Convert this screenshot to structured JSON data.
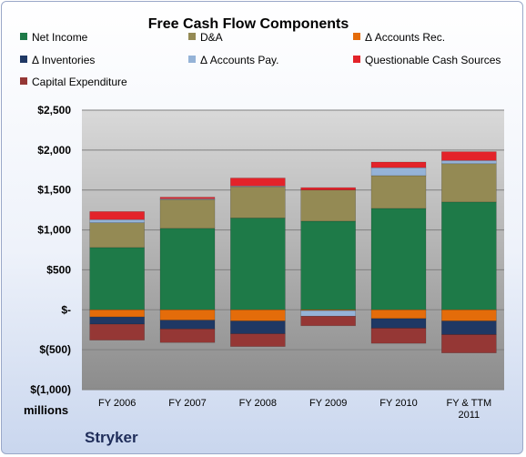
{
  "chart_data": {
    "type": "bar",
    "stacked": true,
    "title": "Free Cash Flow Components",
    "ylabel": "millions",
    "company": "Stryker",
    "categories": [
      "FY 2006",
      "FY 2007",
      "FY 2008",
      "FY 2009",
      "FY 2010",
      "FY & TTM 2011"
    ],
    "yticks": [
      "$2,500",
      "$2,000",
      "$1,500",
      "$1,000",
      "$500",
      "$-",
      "$(500)",
      "$(1,000)"
    ],
    "ylim": [
      -1000,
      2500
    ],
    "grid": true,
    "legend_position": "top",
    "series": [
      {
        "name": "Net Income",
        "color": "#1e7a48",
        "values": [
          780,
          1020,
          1150,
          1110,
          1270,
          1350
        ]
      },
      {
        "name": "D&A",
        "color": "#948a54",
        "values": [
          310,
          360,
          390,
          390,
          410,
          480
        ]
      },
      {
        "name": "Δ Accounts Rec.",
        "color": "#e46c0a",
        "values": [
          -90,
          -130,
          -140,
          -10,
          -110,
          -140
        ]
      },
      {
        "name": "Δ Inventories",
        "color": "#1f3864",
        "values": [
          -90,
          -110,
          -160,
          0,
          -120,
          -170
        ]
      },
      {
        "name": "Δ Accounts Pay.",
        "color": "#95b3d7",
        "values": [
          40,
          10,
          10,
          -70,
          100,
          40
        ]
      },
      {
        "name": "Questionable Cash Sources",
        "color": "#e3232a",
        "values": [
          100,
          20,
          100,
          30,
          70,
          110
        ]
      },
      {
        "name": "Capital Expenditure",
        "color": "#953735",
        "values": [
          -200,
          -170,
          -160,
          -120,
          -190,
          -230
        ]
      }
    ]
  }
}
